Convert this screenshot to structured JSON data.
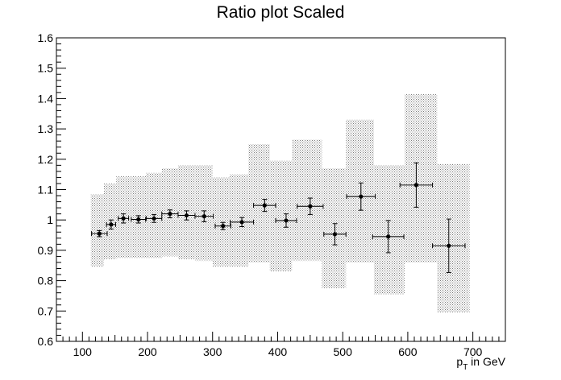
{
  "chart_data": {
    "type": "scatter",
    "title": "Ratio plot Scaled",
    "xlabel_main": "p",
    "xlabel_sub": "T",
    "xlabel_rest": " in GeV",
    "ylabel": "",
    "xlim": [
      60,
      750
    ],
    "ylim": [
      0.6,
      1.6
    ],
    "x_ticks": [
      100,
      200,
      300,
      400,
      500,
      600,
      700
    ],
    "x_tick_labels": [
      "100",
      "200",
      "300",
      "400",
      "500",
      "600",
      "700"
    ],
    "y_ticks": [
      0.6,
      0.7,
      0.8,
      0.9,
      1.0,
      1.1,
      1.2,
      1.3,
      1.4,
      1.5,
      1.6
    ],
    "y_tick_labels": [
      "0.6",
      "0.7",
      "0.8",
      "0.9",
      "1",
      "1.1",
      "1.2",
      "1.3",
      "1.4",
      "1.5",
      "1.6"
    ],
    "grid": false,
    "band_color": "#888888",
    "marker_color": "#000000",
    "uncertainty_band": [
      {
        "x_low": 113,
        "x_high": 133,
        "low": 0.845,
        "high": 1.085
      },
      {
        "x_low": 133,
        "x_high": 152,
        "low": 0.87,
        "high": 1.12
      },
      {
        "x_low": 152,
        "x_high": 175,
        "low": 0.875,
        "high": 1.145
      },
      {
        "x_low": 175,
        "x_high": 198,
        "low": 0.875,
        "high": 1.145
      },
      {
        "x_low": 198,
        "x_high": 222,
        "low": 0.875,
        "high": 1.155
      },
      {
        "x_low": 222,
        "x_high": 247,
        "low": 0.88,
        "high": 1.17
      },
      {
        "x_low": 247,
        "x_high": 273,
        "low": 0.87,
        "high": 1.18
      },
      {
        "x_low": 273,
        "x_high": 300,
        "low": 0.865,
        "high": 1.18
      },
      {
        "x_low": 300,
        "x_high": 326,
        "low": 0.845,
        "high": 1.14
      },
      {
        "x_low": 326,
        "x_high": 355,
        "low": 0.845,
        "high": 1.15
      },
      {
        "x_low": 355,
        "x_high": 388,
        "low": 0.86,
        "high": 1.25
      },
      {
        "x_low": 388,
        "x_high": 422,
        "low": 0.83,
        "high": 1.195
      },
      {
        "x_low": 422,
        "x_high": 468,
        "low": 0.865,
        "high": 1.265
      },
      {
        "x_low": 468,
        "x_high": 505,
        "low": 0.775,
        "high": 1.17
      },
      {
        "x_low": 505,
        "x_high": 548,
        "low": 0.86,
        "high": 1.33
      },
      {
        "x_low": 548,
        "x_high": 595,
        "low": 0.755,
        "high": 1.18
      },
      {
        "x_low": 595,
        "x_high": 645,
        "low": 0.86,
        "high": 1.415
      },
      {
        "x_low": 645,
        "x_high": 695,
        "low": 0.695,
        "high": 1.185
      }
    ],
    "points": [
      {
        "x": 126,
        "y": 0.955,
        "xerr": 12,
        "yerr": 0.01
      },
      {
        "x": 144,
        "y": 0.985,
        "xerr": 7,
        "yerr": 0.015
      },
      {
        "x": 163,
        "y": 1.005,
        "xerr": 8,
        "yerr": 0.015
      },
      {
        "x": 186,
        "y": 1.002,
        "xerr": 11,
        "yerr": 0.012
      },
      {
        "x": 210,
        "y": 1.005,
        "xerr": 12,
        "yerr": 0.013
      },
      {
        "x": 234.5,
        "y": 1.02,
        "xerr": 12.5,
        "yerr": 0.013
      },
      {
        "x": 260,
        "y": 1.015,
        "xerr": 13,
        "yerr": 0.015
      },
      {
        "x": 287,
        "y": 1.012,
        "xerr": 14,
        "yerr": 0.018
      },
      {
        "x": 316,
        "y": 0.98,
        "xerr": 12,
        "yerr": 0.012
      },
      {
        "x": 345,
        "y": 0.993,
        "xerr": 18,
        "yerr": 0.015
      },
      {
        "x": 380,
        "y": 1.048,
        "xerr": 17,
        "yerr": 0.02
      },
      {
        "x": 413,
        "y": 0.998,
        "xerr": 16,
        "yerr": 0.022
      },
      {
        "x": 450,
        "y": 1.045,
        "xerr": 20,
        "yerr": 0.027
      },
      {
        "x": 488,
        "y": 0.953,
        "xerr": 17,
        "yerr": 0.035
      },
      {
        "x": 528,
        "y": 1.077,
        "xerr": 22,
        "yerr": 0.045
      },
      {
        "x": 570,
        "y": 0.945,
        "xerr": 24,
        "yerr": 0.053
      },
      {
        "x": 613,
        "y": 1.115,
        "xerr": 25,
        "yerr": 0.073
      },
      {
        "x": 663,
        "y": 0.915,
        "xerr": 25,
        "yerr": 0.088
      }
    ]
  }
}
